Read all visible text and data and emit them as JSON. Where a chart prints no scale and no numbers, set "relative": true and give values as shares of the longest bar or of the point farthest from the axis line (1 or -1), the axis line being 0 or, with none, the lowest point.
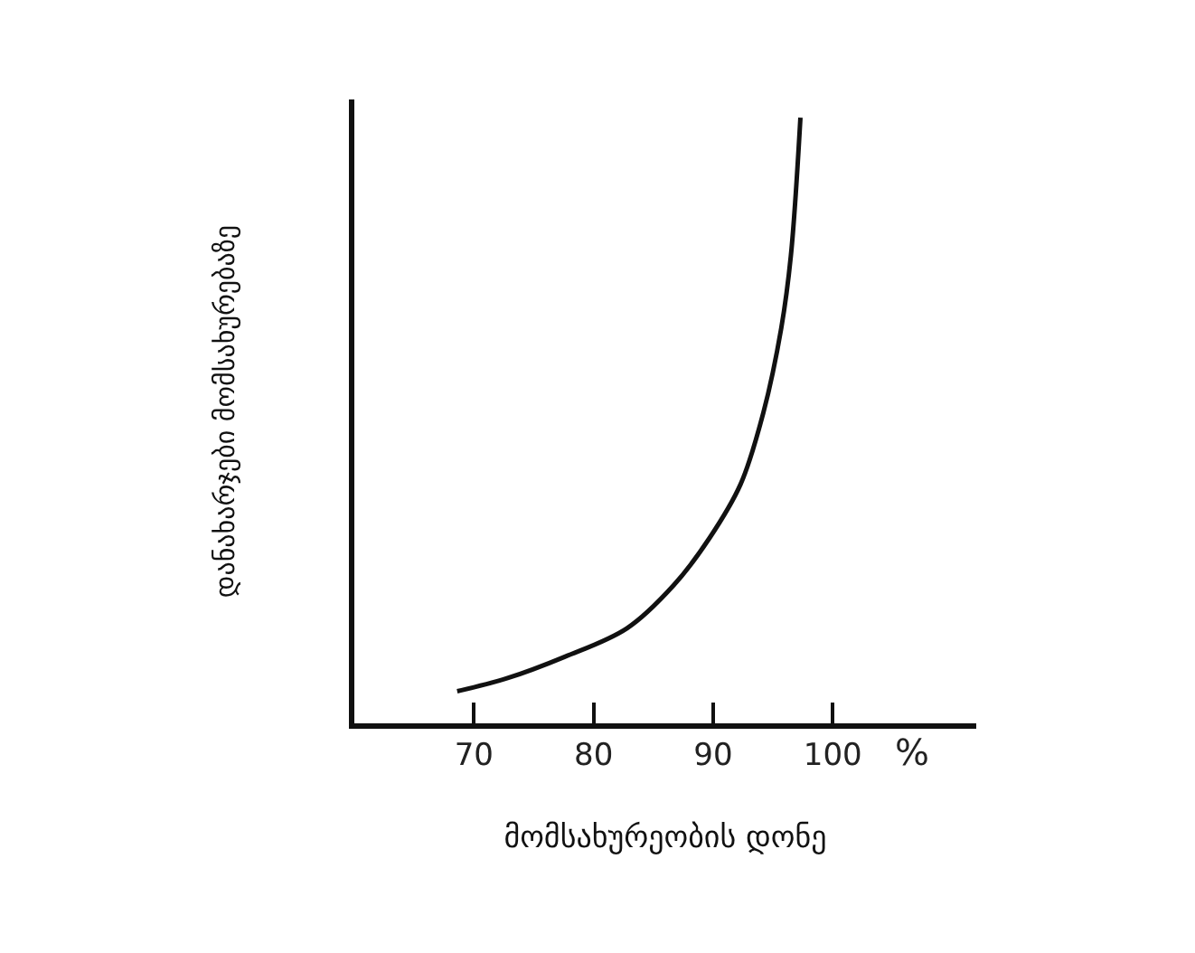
{
  "chart_data": {
    "type": "line",
    "relative": true,
    "xlabel": "მომსახურეობის დონე",
    "ylabel": "დანახარჯები მომსახურებაზე",
    "x": [
      68.6,
      72.7,
      77.6,
      82.8,
      86.7,
      89.7,
      92.3,
      94.2,
      95.7,
      96.5,
      97.3
    ],
    "series": [
      {
        "color": "#111111",
        "values": [
          0.053,
          0.074,
          0.11,
          0.157,
          0.228,
          0.306,
          0.395,
          0.513,
          0.653,
          0.772,
          1
        ]
      }
    ],
    "xlim": [
      60,
      112
    ],
    "xticks": [
      70,
      80,
      90,
      100
    ],
    "annotations": [
      "%"
    ],
    "legend": false,
    "marker": "none",
    "line_style": "solid"
  }
}
